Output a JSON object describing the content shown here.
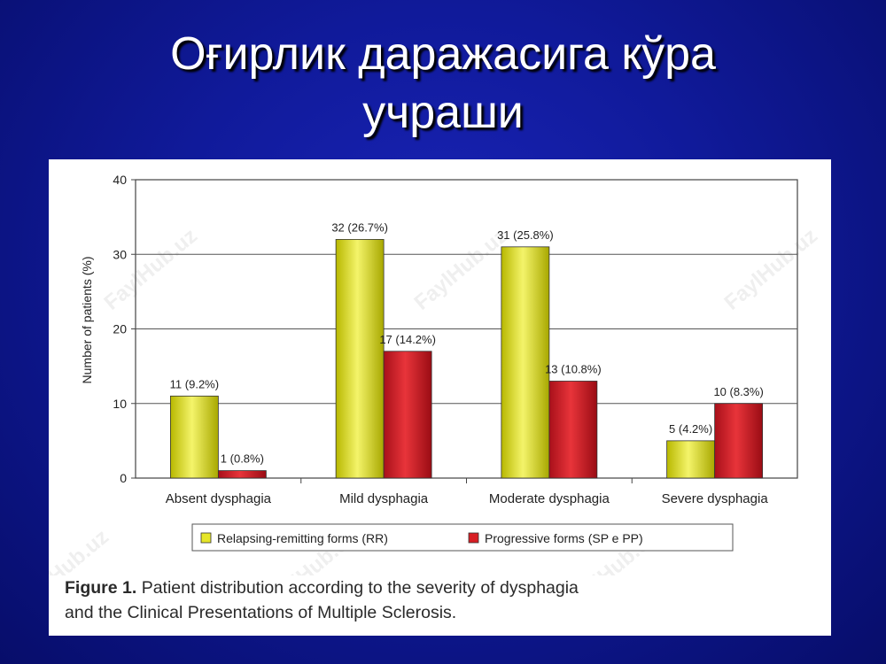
{
  "slide": {
    "title_line1": "Оғирлик даражасига кўра",
    "title_line2": "учраши"
  },
  "figure": {
    "caption_label": "Figure 1.",
    "caption_line1": " Patient distribution according to the severity of dysphagia",
    "caption_line2": "and the Clinical Presentations of Multiple Sclerosis.",
    "watermark": "FaylHub.uz"
  },
  "colors": {
    "slide_background": "#101a9a",
    "series_rr": "#e6e629",
    "series_progressive": "#d81e24"
  },
  "chart_data": {
    "type": "bar",
    "title": "",
    "xlabel": "",
    "ylabel": "Number of patients (%)",
    "ylim": [
      0,
      40
    ],
    "yticks": [
      0,
      10,
      20,
      30,
      40
    ],
    "grid": true,
    "legend_position": "bottom",
    "categories": [
      "Absent dysphagia",
      "Mild dysphagia",
      "Moderate dysphagia",
      "Severe dysphagia"
    ],
    "series": [
      {
        "name": "Relapsing-remitting forms (RR)",
        "color": "#e6e629",
        "values": [
          11,
          32,
          31,
          5
        ],
        "labels": [
          "11 (9.2%)",
          "32 (26.7%)",
          "31 (25.8%)",
          "5 (4.2%)"
        ]
      },
      {
        "name": "Progressive forms (SP e PP)",
        "color": "#d81e24",
        "values": [
          1,
          17,
          13,
          10
        ],
        "labels": [
          "1 (0.8%)",
          "17 (14.2%)",
          "13 (10.8%)",
          "10 (8.3%)"
        ]
      }
    ]
  }
}
